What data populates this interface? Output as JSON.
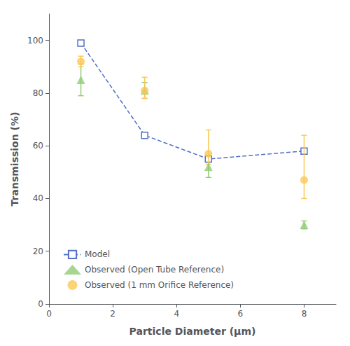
{
  "chart_data": {
    "type": "scatter",
    "xlabel": "Particle Diameter (μm)",
    "ylabel": "Transmission (%)",
    "xlim": [
      0,
      9
    ],
    "ylim": [
      0,
      110
    ],
    "xticks": [
      0,
      2,
      4,
      6,
      8
    ],
    "yticks": [
      0,
      20,
      40,
      60,
      80,
      100
    ],
    "grid": false,
    "legend": "lower left",
    "series": [
      {
        "name": "Model",
        "type": "line",
        "line_style": "dashed",
        "marker": "square",
        "x": [
          1,
          3,
          5,
          8
        ],
        "values": [
          99,
          64,
          55,
          58
        ]
      },
      {
        "name": "Observed (Open Tube Reference)",
        "type": "scatter",
        "marker": "triangle",
        "x": [
          1,
          3,
          5,
          8
        ],
        "values": [
          85,
          81,
          52,
          30
        ],
        "yerr": [
          6,
          3,
          4,
          1.5
        ]
      },
      {
        "name": "Observed (1 mm Orifice Reference)",
        "type": "scatter",
        "marker": "circle",
        "x": [
          1,
          3,
          5,
          8
        ],
        "values": [
          92,
          81,
          57,
          47
        ],
        "yerr_lower": [
          2,
          3,
          4,
          7
        ],
        "yerr_upper": [
          2,
          5,
          9,
          17
        ]
      }
    ]
  }
}
